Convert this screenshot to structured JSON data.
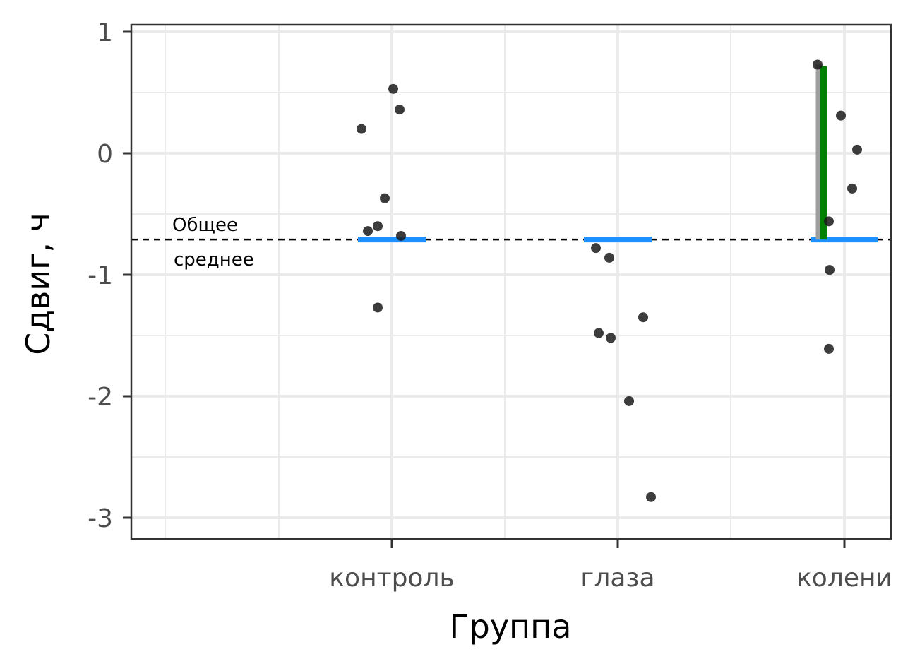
{
  "chart_data": {
    "type": "scatter",
    "title": "",
    "xlabel": "Группа",
    "ylabel": "Сдвиг, ч",
    "categories": [
      "контроль",
      "глаза",
      "колени"
    ],
    "ylim": [
      -3.15,
      1.05
    ],
    "yticks": [
      1,
      0,
      -1,
      -2,
      -3
    ],
    "ytick_labels": [
      "1",
      "0",
      "-1",
      "-2",
      "-3"
    ],
    "grid": true,
    "points": [
      {
        "group": "контроль",
        "y": 0.53
      },
      {
        "group": "контроль",
        "y": 0.36
      },
      {
        "group": "контроль",
        "y": 0.2
      },
      {
        "group": "контроль",
        "y": -0.37
      },
      {
        "group": "контроль",
        "y": -0.6
      },
      {
        "group": "контроль",
        "y": -0.64
      },
      {
        "group": "контроль",
        "y": -0.68
      },
      {
        "group": "контроль",
        "y": -1.27
      },
      {
        "group": "глаза",
        "y": -0.78
      },
      {
        "group": "глаза",
        "y": -0.86
      },
      {
        "group": "глаза",
        "y": -1.35
      },
      {
        "group": "глаза",
        "y": -1.48
      },
      {
        "group": "глаза",
        "y": -1.52
      },
      {
        "group": "глаза",
        "y": -2.04
      },
      {
        "group": "глаза",
        "y": -2.83
      },
      {
        "group": "колени",
        "y": 0.73
      },
      {
        "group": "колени",
        "y": 0.31
      },
      {
        "group": "колени",
        "y": 0.03
      },
      {
        "group": "колени",
        "y": -0.29
      },
      {
        "group": "колени",
        "y": -0.56
      },
      {
        "group": "колени",
        "y": -0.96
      },
      {
        "group": "колени",
        "y": -1.61
      }
    ],
    "group_mean_lines": [
      {
        "group": "контроль",
        "y": -0.71
      },
      {
        "group": "глаза",
        "y": -0.71
      },
      {
        "group": "колени",
        "y": -0.71
      }
    ],
    "overall_mean": -0.71,
    "overall_mean_label_line1": "Общее",
    "overall_mean_label_line2": "среднее",
    "deviation_segment": {
      "group": "колени",
      "y_start": -0.71,
      "y_end": 0.73
    },
    "colors": {
      "point": "#1a1a1a",
      "group_mean": "#1e90ff",
      "deviation": "#008000",
      "deviation_shadow": "#9e9e9e",
      "grid": "#ebebeb",
      "panel_border": "#333333",
      "tick_text": "#4d4d4d"
    }
  }
}
